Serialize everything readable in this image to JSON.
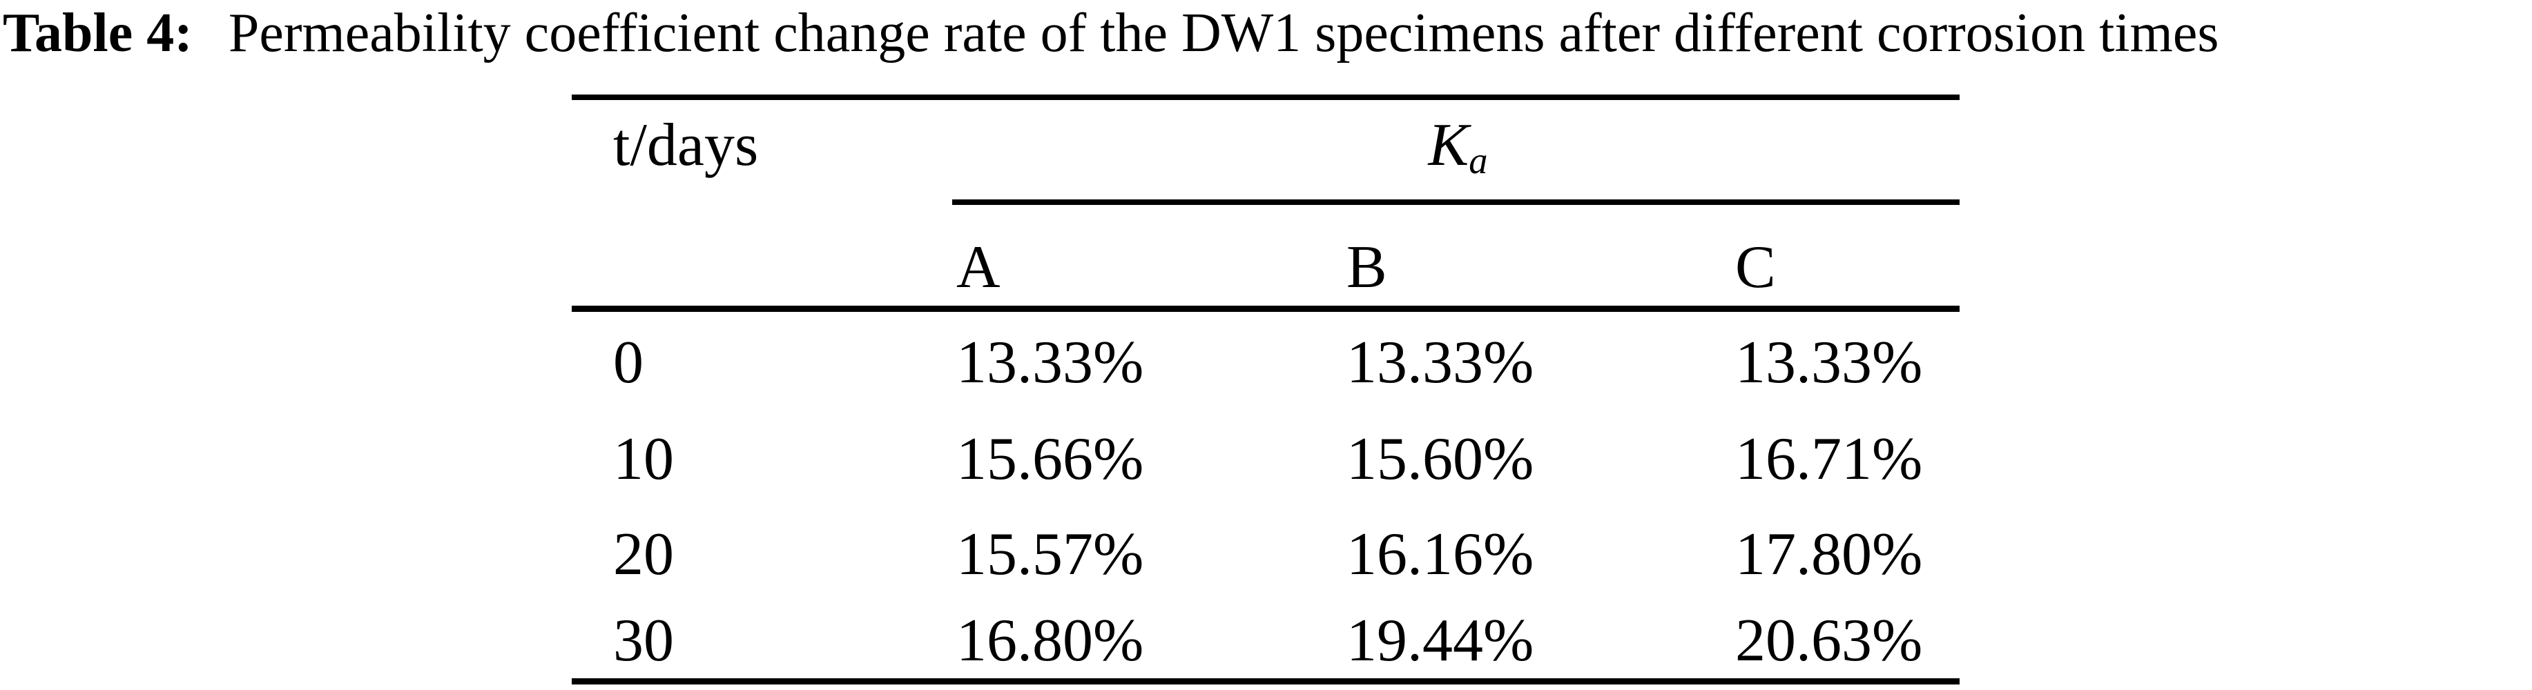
{
  "title": {
    "label": "Table 4:",
    "caption": "Permeability coefficient change rate of the DW1 specimens after different corrosion times"
  },
  "table": {
    "col1_header": "t/days",
    "group_header": {
      "base": "K",
      "subscript": "a"
    },
    "sub_headers": [
      "A",
      "B",
      "C"
    ],
    "rows": [
      {
        "t": "0",
        "a": "13.33%",
        "b": "13.33%",
        "c": "13.33%"
      },
      {
        "t": "10",
        "a": "15.66%",
        "b": "15.60%",
        "c": "16.71%"
      },
      {
        "t": "20",
        "a": "15.57%",
        "b": "16.16%",
        "c": "17.80%"
      },
      {
        "t": "30",
        "a": "16.80%",
        "b": "19.44%",
        "c": "20.63%"
      }
    ]
  },
  "colors": {
    "background": "#ffffff",
    "text": "#000000",
    "rule": "#000000"
  }
}
